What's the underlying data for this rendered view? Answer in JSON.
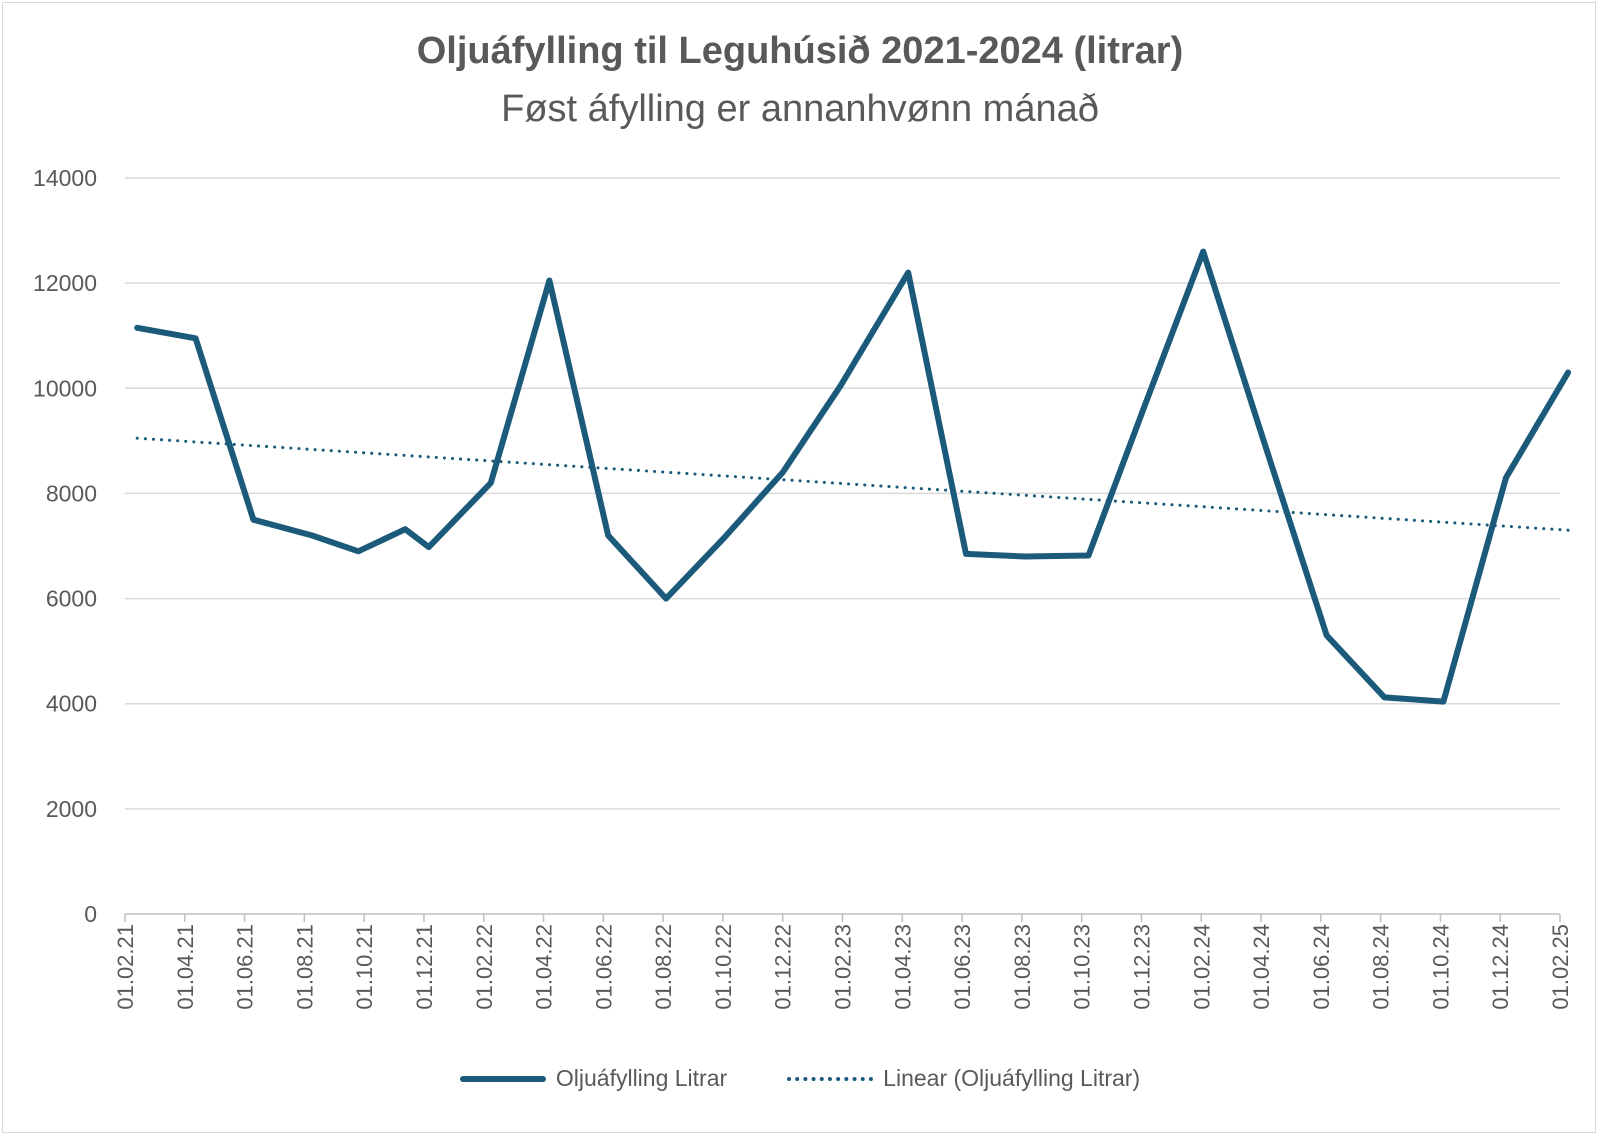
{
  "chart_data": {
    "type": "line",
    "title": "Oljuáfylling til Leguhúsið 2021-2024 (litrar)",
    "subtitle": "Føst áfylling er annanhvønn mánað",
    "categories": [
      "01.02.21",
      "01.04.21",
      "01.06.21",
      "01.08.21",
      "01.10.21",
      "01.12.21",
      "01.02.22",
      "01.04.22",
      "01.06.22",
      "01.08.22",
      "01.10.22",
      "01.12.22",
      "01.02.23",
      "01.04.23",
      "01.06.23",
      "01.08.23",
      "01.10.23",
      "01.12.23",
      "01.02.24",
      "01.04.24",
      "01.06.24",
      "01.08.24",
      "01.10.24",
      "01.12.24",
      "01.02.25"
    ],
    "series": [
      {
        "name": "Oljuáfylling Litrar",
        "style": "solid",
        "color": "#1b5a7a",
        "points": [
          {
            "x": "2021-02-13",
            "y": 11150
          },
          {
            "x": "2021-04-12",
            "y": 10950
          },
          {
            "x": "2021-06-10",
            "y": 7500
          },
          {
            "x": "2021-08-09",
            "y": 7200
          },
          {
            "x": "2021-09-25",
            "y": 6900
          },
          {
            "x": "2021-11-12",
            "y": 7320
          },
          {
            "x": "2021-12-06",
            "y": 6980
          },
          {
            "x": "2022-02-08",
            "y": 8200
          },
          {
            "x": "2022-04-07",
            "y": 12050
          },
          {
            "x": "2022-06-06",
            "y": 7200
          },
          {
            "x": "2022-08-04",
            "y": 6000
          },
          {
            "x": "2022-10-02",
            "y": 7150
          },
          {
            "x": "2022-12-01",
            "y": 8400
          },
          {
            "x": "2023-01-30",
            "y": 10050
          },
          {
            "x": "2023-04-07",
            "y": 12200
          },
          {
            "x": "2023-06-05",
            "y": 6850
          },
          {
            "x": "2023-08-04",
            "y": 6800
          },
          {
            "x": "2023-10-08",
            "y": 6820
          },
          {
            "x": "2023-12-05",
            "y": 9700
          },
          {
            "x": "2024-02-03",
            "y": 12600
          },
          {
            "x": "2024-04-02",
            "y": 9100
          },
          {
            "x": "2024-06-07",
            "y": 5300
          },
          {
            "x": "2024-08-05",
            "y": 4120
          },
          {
            "x": "2024-10-04",
            "y": 4040
          },
          {
            "x": "2024-12-07",
            "y": 8300
          },
          {
            "x": "2025-02-09",
            "y": 10300
          }
        ]
      },
      {
        "name": "Linear (Oljuáfylling Litrar)",
        "style": "dotted",
        "color": "#1b5a7a",
        "points": [
          {
            "x": "2021-02-13",
            "y": 9050
          },
          {
            "x": "2025-02-09",
            "y": 7300
          }
        ]
      }
    ],
    "ylim": [
      0,
      14000
    ],
    "yticks": [
      0,
      2000,
      4000,
      6000,
      8000,
      10000,
      12000,
      14000
    ],
    "grid": true,
    "legend": "bottom"
  }
}
